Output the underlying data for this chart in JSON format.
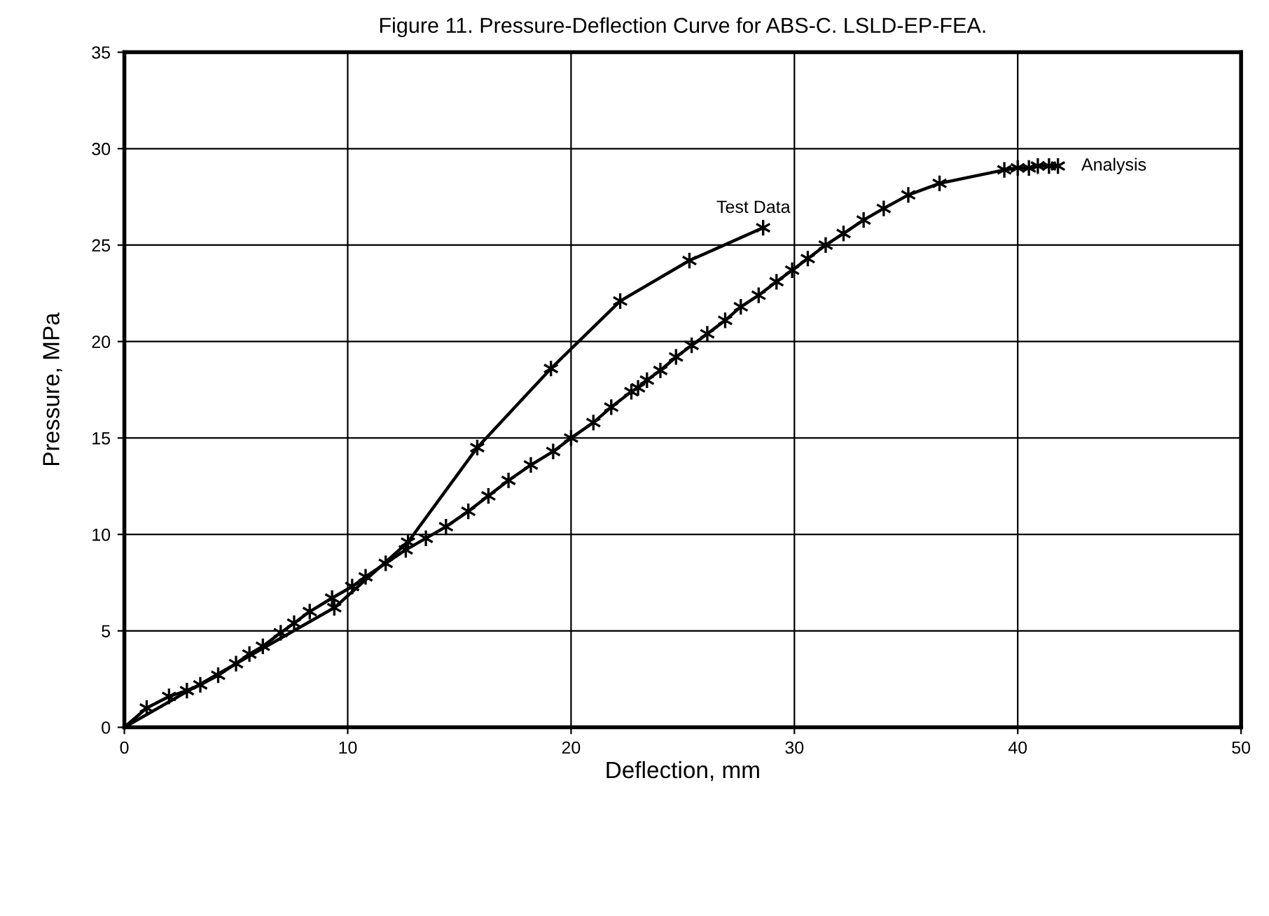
{
  "chart_data": {
    "type": "line",
    "title": "Figure 11. Pressure-Deflection Curve for ABS-C. LSLD-EP-FEA.",
    "xlabel": "Deflection, mm",
    "ylabel": "Pressure, MPa",
    "xlim": [
      0,
      50
    ],
    "xticks": [
      0,
      10,
      20,
      30,
      40,
      50
    ],
    "ylim": [
      0,
      35
    ],
    "yticks": [
      0,
      5,
      10,
      15,
      20,
      25,
      30,
      35
    ],
    "grid": true,
    "legend": false,
    "marker": "cross",
    "line_style": "solid",
    "series": [
      {
        "color": "#000000",
        "x": [
          0,
          9.4,
          12.7,
          15.8,
          19.1,
          22.2,
          25.3,
          28.6
        ],
        "values": [
          0,
          6.2,
          9.6,
          14.5,
          18.6,
          22.1,
          24.2,
          25.9
        ]
      },
      {
        "color": "#000000",
        "x": [
          0,
          1,
          2,
          2.8,
          3.4,
          4.2,
          5,
          5.6,
          6.2,
          7,
          7.6,
          8.3,
          9.3,
          10.2,
          10.8,
          11.7,
          12.6,
          13.5,
          14.4,
          15.4,
          16.3,
          17.2,
          18.2,
          19.2,
          20,
          21,
          21.8,
          22.7,
          23,
          23.4,
          24,
          24.7,
          25.4,
          26.1,
          26.9,
          27.6,
          28.4,
          29.2,
          29.9,
          30.6,
          31.4,
          32.2,
          33.1,
          34,
          35.1,
          36.5,
          39.4,
          40,
          40.5,
          40.9,
          41.4,
          41.8
        ],
        "values": [
          0,
          1.0,
          1.6,
          1.9,
          2.2,
          2.7,
          3.3,
          3.8,
          4.2,
          4.9,
          5.4,
          6.0,
          6.7,
          7.3,
          7.8,
          8.5,
          9.2,
          9.8,
          10.4,
          11.2,
          12,
          12.8,
          13.6,
          14.3,
          15,
          15.8,
          16.6,
          17.4,
          17.6,
          18,
          18.5,
          19.2,
          19.8,
          20.4,
          21.1,
          21.8,
          22.4,
          23.1,
          23.7,
          24.3,
          25,
          25.6,
          26.3,
          26.9,
          27.6,
          28.2,
          28.9,
          29,
          29,
          29.1,
          29.1,
          29.1
        ]
      }
    ],
    "annotations": [
      {
        "text": "Test Data",
        "x": 28.6,
        "y": 25.9
      },
      {
        "text": "Analysis",
        "x": 41.8,
        "y": 29.1
      }
    ]
  }
}
